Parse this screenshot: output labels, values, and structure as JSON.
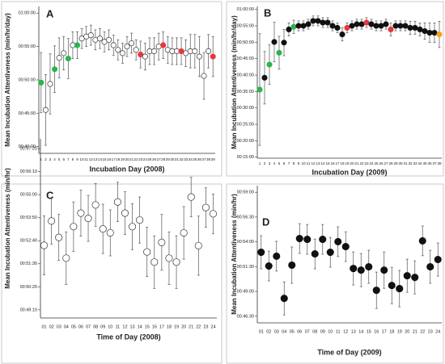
{
  "chart_data": [
    {
      "type": "errorbar",
      "panel": "A",
      "ylabel": "Mean Incubation Attentiveness (min/hr/day)",
      "xlabel": "Incubation Day (2008)",
      "categories": [
        "1",
        "2",
        "3",
        "4",
        "5",
        "6",
        "7",
        "8",
        "9",
        "10",
        "11",
        "12",
        "13",
        "14",
        "15",
        "16",
        "17",
        "18",
        "19",
        "20",
        "21",
        "22",
        "23",
        "24",
        "25",
        "26",
        "27",
        "28",
        "29",
        "30",
        "31",
        "32",
        "33",
        "34",
        "35",
        "36",
        "37",
        "38",
        "39"
      ],
      "values": [
        49.6,
        45.5,
        49.4,
        51.6,
        53.3,
        54,
        53.2,
        55.2,
        55.2,
        56.2,
        56.5,
        56.7,
        56,
        56.2,
        55.7,
        56,
        55.2,
        54.5,
        54,
        55,
        55.5,
        54.5,
        53.8,
        53.5,
        54.3,
        54.3,
        55,
        55.2,
        54.5,
        54.3,
        54.3,
        54.3,
        54,
        54.3,
        54.3,
        53.5,
        50.6,
        54.3,
        53.5
      ],
      "errors": [
        4.5,
        5.3,
        4.5,
        3.5,
        3,
        2.5,
        3,
        2,
        2,
        1.5,
        1.5,
        1.5,
        1.5,
        1.5,
        1.5,
        1.5,
        1.5,
        1.5,
        1.5,
        1.5,
        1.5,
        1.5,
        2,
        2,
        2,
        2,
        2,
        2,
        2,
        2,
        2,
        2,
        2,
        2.5,
        2.5,
        3,
        3.5,
        2.5,
        3
      ],
      "point_colors": [
        "#2db34a",
        "#ffffff",
        "#ffffff",
        "#2db34a",
        "#ffffff",
        "#ffffff",
        "#2db34a",
        "#ffffff",
        "#2db34a",
        "#ffffff",
        "#ffffff",
        "#ffffff",
        "#ffffff",
        "#ffffff",
        "#ffffff",
        "#ffffff",
        "#ffffff",
        "#ffffff",
        "#ffffff",
        "#ffffff",
        "#ffffff",
        "#ffffff",
        "#e8383d",
        "#ffffff",
        "#ffffff",
        "#ffffff",
        "#ffffff",
        "#e8383d",
        "#ffffff",
        "#ffffff",
        "#ffffff",
        "#e8383d",
        "#ffffff",
        "#ffffff",
        "#ffffff",
        "#ffffff",
        "#ffffff",
        "#ffffff",
        "#e8383d"
      ],
      "ylim": [
        39,
        61
      ],
      "yticks": [
        {
          "value": 40,
          "label": "00:40:00"
        },
        {
          "value": 45,
          "label": "00:45:00"
        },
        {
          "value": 50,
          "label": "00:50:00"
        },
        {
          "value": 55,
          "label": "00:55:00"
        },
        {
          "value": 60,
          "label": "01:00:00"
        }
      ]
    },
    {
      "type": "errorbar",
      "panel": "B",
      "ylabel": "Mean Incubation Attentiveness (min/hr/day)",
      "xlabel": "Incubation Day (2009)",
      "categories": [
        "1",
        "2",
        "3",
        "4",
        "5",
        "6",
        "7",
        "8",
        "9",
        "10",
        "11",
        "12",
        "13",
        "14",
        "15",
        "16",
        "17",
        "18",
        "19",
        "20",
        "21",
        "22",
        "23",
        "24",
        "25",
        "26",
        "27",
        "28",
        "29",
        "30",
        "31",
        "32",
        "33",
        "34",
        "35",
        "36",
        "37",
        "38"
      ],
      "values": [
        35.6,
        39.2,
        43.2,
        50.1,
        46.8,
        49.9,
        53.9,
        54.7,
        55,
        55,
        55.5,
        56.5,
        56.5,
        56,
        56,
        55,
        54.4,
        52.4,
        54.4,
        55,
        55.5,
        55.5,
        56,
        55.5,
        55,
        55,
        55.5,
        53.9,
        55,
        55,
        55,
        54.4,
        54.4,
        53.9,
        53.4,
        52.9,
        52.9,
        52.4
      ],
      "errors": [
        17,
        8,
        6,
        6,
        5,
        4,
        2,
        2,
        1.5,
        1.5,
        1.5,
        1.5,
        1.5,
        1.5,
        1.5,
        1.5,
        1.5,
        2,
        1.5,
        1.5,
        1.5,
        1.5,
        1.5,
        1.5,
        1.5,
        1.5,
        1.5,
        2,
        1.5,
        1.5,
        1.5,
        2,
        2,
        2,
        2.5,
        3,
        3,
        4
      ],
      "point_colors": [
        "#2db34a",
        "#111111",
        "#2db34a",
        "#111111",
        "#2db34a",
        "#111111",
        "#111111",
        "#2db34a",
        "#111111",
        "#111111",
        "#111111",
        "#111111",
        "#111111",
        "#111111",
        "#111111",
        "#111111",
        "#111111",
        "#111111",
        "#e8383d",
        "#111111",
        "#111111",
        "#111111",
        "#e8383d",
        "#111111",
        "#111111",
        "#111111",
        "#111111",
        "#e8383d",
        "#111111",
        "#111111",
        "#111111",
        "#111111",
        "#111111",
        "#111111",
        "#111111",
        "#111111",
        "#111111",
        "#f7a21b"
      ],
      "ylim": [
        14.7,
        60.9
      ],
      "yticks": [
        {
          "value": 15,
          "label": "00:15:00"
        },
        {
          "value": 20,
          "label": "00:20:00"
        },
        {
          "value": 25,
          "label": "00:25:00"
        },
        {
          "value": 30,
          "label": "00:30:00"
        },
        {
          "value": 35,
          "label": "00:35:00"
        },
        {
          "value": 40,
          "label": "00:40:00"
        },
        {
          "value": 45,
          "label": "00:45:00"
        },
        {
          "value": 50,
          "label": "00:50:00"
        },
        {
          "value": 55,
          "label": "00:55:00"
        },
        {
          "value": 60,
          "label": "01:00:00"
        }
      ]
    },
    {
      "type": "errorbar",
      "panel": "C",
      "ylabel": "Mean Incubation Attentiveness (min/hr)",
      "xlabel": "Time of Day (2008)",
      "categories": [
        "01",
        "02",
        "03",
        "04",
        "05",
        "06",
        "07",
        "08",
        "09",
        "10",
        "11",
        "12",
        "13",
        "14",
        "15",
        "16",
        "17",
        "18",
        "19",
        "20",
        "21",
        "22",
        "23",
        "24"
      ],
      "values": [
        3146,
        3220,
        3170,
        3107,
        3203,
        3244,
        3228,
        3269,
        3196,
        3184,
        3278,
        3244,
        3203,
        3223,
        3126,
        3095,
        3155,
        3107,
        3095,
        3184,
        3293,
        3145,
        3261,
        3242
      ],
      "errors": [
        90,
        70,
        70,
        80,
        75,
        70,
        70,
        65,
        75,
        70,
        60,
        65,
        70,
        70,
        75,
        80,
        85,
        80,
        80,
        80,
        60,
        90,
        60,
        60
      ],
      "color": "#ffffff",
      "ylim": [
        2925,
        3470
      ],
      "yticks": [
        {
          "value": 2950,
          "label": "00:49:10"
        },
        {
          "value": 3020,
          "label": "00:50:20"
        },
        {
          "value": 3090,
          "label": "00:51:30"
        },
        {
          "value": 3160,
          "label": "00:52:40"
        },
        {
          "value": 3230,
          "label": "00:53:50"
        },
        {
          "value": 3300,
          "label": "00:55:00"
        },
        {
          "value": 3370,
          "label": "00:56:10"
        },
        {
          "value": 3440,
          "label": "00:57:20"
        }
      ]
    },
    {
      "type": "errorbar",
      "panel": "D",
      "ylabel": "Mean Incubation Attentiveness (min/hr)",
      "xlabel": "Time of Day (2009)",
      "categories": [
        "01",
        "02",
        "03",
        "04",
        "05",
        "06",
        "07",
        "08",
        "09",
        "10",
        "11",
        "12",
        "13",
        "14",
        "15",
        "16",
        "17",
        "18",
        "19",
        "20",
        "21",
        "22",
        "23",
        "24"
      ],
      "values": [
        3177,
        3094,
        3153,
        2898,
        3099,
        3260,
        3255,
        3167,
        3255,
        3177,
        3241,
        3211,
        3079,
        3069,
        3089,
        2947,
        3069,
        2976,
        2957,
        3035,
        3025,
        3246,
        3089,
        3133
      ],
      "errors": [
        100,
        90,
        90,
        100,
        110,
        90,
        90,
        90,
        90,
        90,
        90,
        90,
        100,
        100,
        100,
        110,
        110,
        110,
        110,
        100,
        100,
        90,
        100,
        100
      ],
      "color": "#111111",
      "ylim": [
        2750,
        3580
      ],
      "yticks": [
        {
          "value": 2790,
          "label": "00:46:30"
        },
        {
          "value": 2940,
          "label": "00:49:00"
        },
        {
          "value": 3090,
          "label": "00:51:30"
        },
        {
          "value": 3240,
          "label": "00:54:00"
        },
        {
          "value": 3390,
          "label": "00:56:30"
        },
        {
          "value": 3540,
          "label": "00:59:00"
        }
      ]
    }
  ]
}
